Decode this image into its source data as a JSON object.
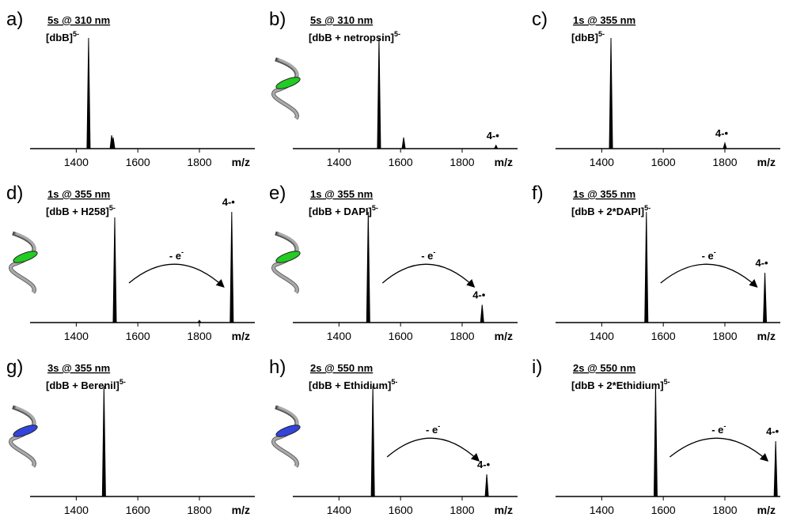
{
  "chart_data": [
    {
      "type": "spectrum",
      "label": "a)",
      "title": "5s @ 310 nm",
      "subtitle": "[dbB]",
      "subtitle_sup": "5-",
      "x": [
        1440,
        1515,
        1520
      ],
      "values": [
        100,
        12,
        10
      ],
      "xlim": [
        1250,
        1980
      ],
      "xticks": [
        1400,
        1600,
        1800
      ],
      "xlabel": "m/z",
      "color": "#000000"
    },
    {
      "type": "spectrum",
      "label": "b)",
      "title": "5s @ 310 nm",
      "subtitle": "[dbB + netropsin]",
      "subtitle_sup": "5-",
      "x": [
        1530,
        1610,
        1910
      ],
      "values": [
        100,
        10,
        3
      ],
      "xlim": [
        1250,
        1980
      ],
      "xticks": [
        1400,
        1600,
        1800
      ],
      "xlabel": "m/z",
      "color": "#000000",
      "peak_label": "4-•"
    },
    {
      "type": "spectrum",
      "label": "c)",
      "title": "1s @ 355 nm",
      "subtitle": "[dbB]",
      "subtitle_sup": "5-",
      "x": [
        1430,
        1800
      ],
      "values": [
        100,
        5
      ],
      "xlim": [
        1250,
        1980
      ],
      "xticks": [
        1400,
        1600,
        1800
      ],
      "xlabel": "m/z",
      "color": "#000000",
      "peak_label": "4-•"
    },
    {
      "type": "spectrum",
      "label": "d)",
      "title": "1s @ 355 nm",
      "subtitle": "[dbB + H258]",
      "subtitle_sup": "5-",
      "x": [
        1525,
        1800,
        1905
      ],
      "values": [
        95,
        2,
        100
      ],
      "xlim": [
        1250,
        1980
      ],
      "xticks": [
        1400,
        1600,
        1800
      ],
      "xlabel": "m/z",
      "color": "#000000",
      "peak_label": "4-•",
      "arrow_label": "- e",
      "arrow_label_sup": "-"
    },
    {
      "type": "spectrum",
      "label": "e)",
      "title": "1s @ 355 nm",
      "subtitle": "[dbB + DAPI]",
      "subtitle_sup": "5-",
      "x": [
        1495,
        1865
      ],
      "values": [
        100,
        16
      ],
      "xlim": [
        1250,
        1980
      ],
      "xticks": [
        1400,
        1600,
        1800
      ],
      "xlabel": "m/z",
      "color": "#000000",
      "peak_label": "4-•",
      "arrow_label": "- e",
      "arrow_label_sup": "-"
    },
    {
      "type": "spectrum",
      "label": "f)",
      "title": "1s @ 355 nm",
      "subtitle": "[dbB + 2*DAPI]",
      "subtitle_sup": "5-",
      "x": [
        1545,
        1930
      ],
      "values": [
        100,
        45
      ],
      "xlim": [
        1250,
        1980
      ],
      "xticks": [
        1400,
        1600,
        1800
      ],
      "xlabel": "m/z",
      "color": "#000000",
      "peak_label": "4-•",
      "arrow_label": "- e",
      "arrow_label_sup": "-"
    },
    {
      "type": "spectrum",
      "label": "g)",
      "title": "3s @ 355 nm",
      "subtitle": "[dbB + Berenil]",
      "subtitle_sup": "5-",
      "x": [
        1490
      ],
      "values": [
        100
      ],
      "xlim": [
        1250,
        1980
      ],
      "xticks": [
        1400,
        1600,
        1800
      ],
      "xlabel": "m/z",
      "color": "#000000"
    },
    {
      "type": "spectrum",
      "label": "h)",
      "title": "2s @ 550 nm",
      "subtitle": "[dbB + Ethidium]",
      "subtitle_sup": "5-",
      "x": [
        1510,
        1880
      ],
      "values": [
        100,
        20
      ],
      "xlim": [
        1250,
        1980
      ],
      "xticks": [
        1400,
        1600,
        1800
      ],
      "xlabel": "m/z",
      "color": "#000000",
      "peak_label": "4-•",
      "arrow_label": "- e",
      "arrow_label_sup": "-"
    },
    {
      "type": "spectrum",
      "label": "i)",
      "title": "2s @ 550 nm",
      "subtitle": "[dbB + 2*Ethidium]",
      "subtitle_sup": "5-",
      "x": [
        1575,
        1965
      ],
      "values": [
        100,
        50
      ],
      "xlim": [
        1250,
        1980
      ],
      "xticks": [
        1400,
        1600,
        1800
      ],
      "xlabel": "m/z",
      "color": "#000000",
      "peak_label": "4-•",
      "arrow_label": "- e",
      "arrow_label_sup": "-"
    }
  ]
}
